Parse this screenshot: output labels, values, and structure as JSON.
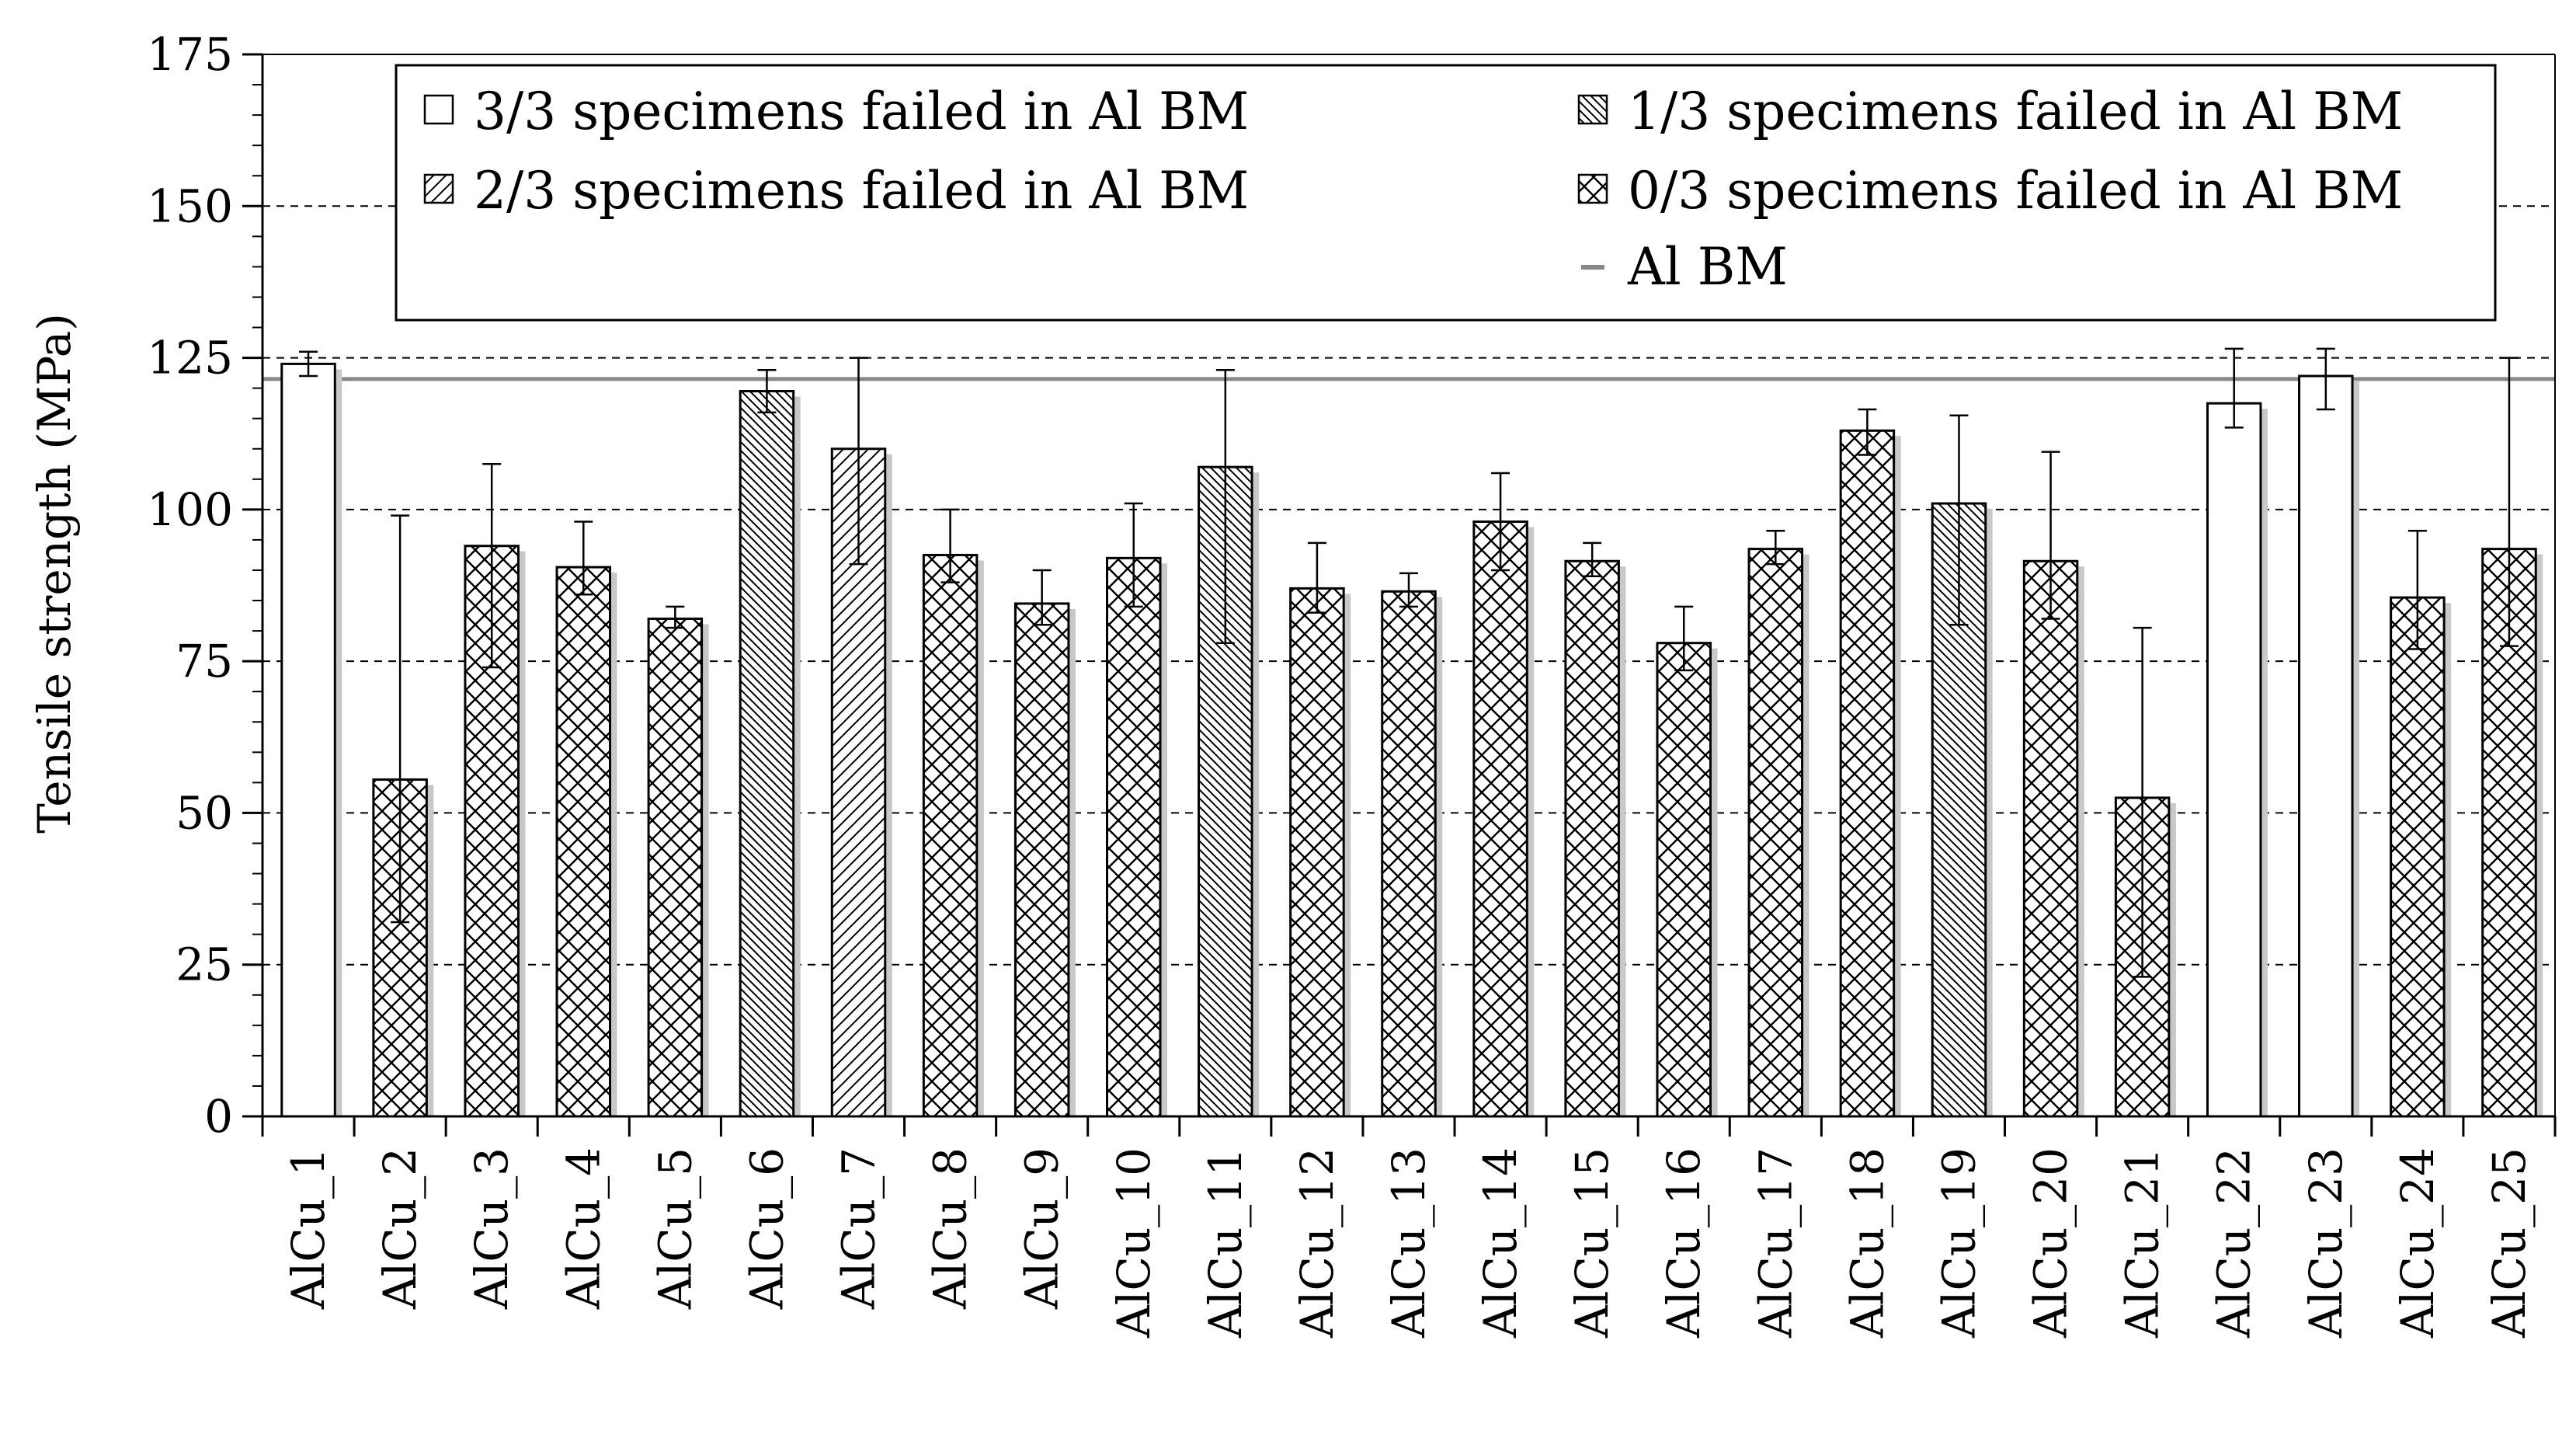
{
  "chart_data": {
    "type": "bar",
    "title": "",
    "xlabel": "",
    "ylabel": "Tensile strength (MPa)",
    "ylim": [
      0,
      175
    ],
    "yticks": [
      "0",
      "25",
      "50",
      "75",
      "100",
      "125",
      "150",
      "175"
    ],
    "grid": "dashed horizontal at each major tick",
    "categories": [
      "AlCu_1",
      "AlCu_2",
      "AlCu_3",
      "AlCu_4",
      "AlCu_5",
      "AlCu_6",
      "AlCu_7",
      "AlCu_8",
      "AlCu_9",
      "AlCu_10",
      "AlCu_11",
      "AlCu_12",
      "AlCu_13",
      "AlCu_14",
      "AlCu_15",
      "AlCu_16",
      "AlCu_17",
      "AlCu_18",
      "AlCu_19",
      "AlCu_20",
      "AlCu_21",
      "AlCu_22",
      "AlCu_23",
      "AlCu_24",
      "AlCu_25"
    ],
    "values": [
      124,
      55.5,
      94,
      90.5,
      82,
      119.5,
      110,
      92.5,
      84.5,
      92,
      107,
      87,
      86.5,
      98,
      91.5,
      78,
      93.5,
      113,
      101,
      91.5,
      52.5,
      117.5,
      122,
      85.5,
      93.5
    ],
    "error_low": [
      122,
      32,
      74,
      86,
      80.5,
      116,
      91,
      88,
      81,
      84,
      78,
      83,
      84,
      90,
      89,
      73.5,
      91,
      109,
      81,
      82,
      23,
      113.5,
      116.5,
      77,
      77.5
    ],
    "error_high": [
      126,
      99,
      107.5,
      98,
      84,
      123,
      125,
      100,
      90,
      101,
      123,
      94.5,
      89.5,
      106,
      94.5,
      84,
      96.5,
      116.5,
      115.5,
      109.5,
      80.5,
      126.5,
      126.5,
      96.5,
      125
    ],
    "failure_group": [
      "3/3",
      "0/3",
      "0/3",
      "0/3",
      "0/3",
      "1/3",
      "2/3",
      "0/3",
      "0/3",
      "0/3",
      "1/3",
      "0/3",
      "0/3",
      "0/3",
      "0/3",
      "0/3",
      "0/3",
      "0/3",
      "1/3",
      "0/3",
      "0/3",
      "3/3",
      "3/3",
      "0/3",
      "0/3"
    ],
    "reference_line": {
      "name": "Al BM",
      "value": 121.5
    },
    "legend": [
      {
        "key": "3/3",
        "label": "3/3 specimens failed in Al BM",
        "pattern": "none"
      },
      {
        "key": "1/3",
        "label": "1/3 specimens failed in Al BM",
        "pattern": "dense-backslash"
      },
      {
        "key": "2/3",
        "label": "2/3 specimens failed in Al BM",
        "pattern": "forward-slash"
      },
      {
        "key": "0/3",
        "label": "0/3 specimens failed in Al BM",
        "pattern": "crosshatch"
      },
      {
        "key": "line",
        "label": "Al BM",
        "pattern": "line"
      }
    ],
    "legend_placement": "top-right, inside plot"
  }
}
